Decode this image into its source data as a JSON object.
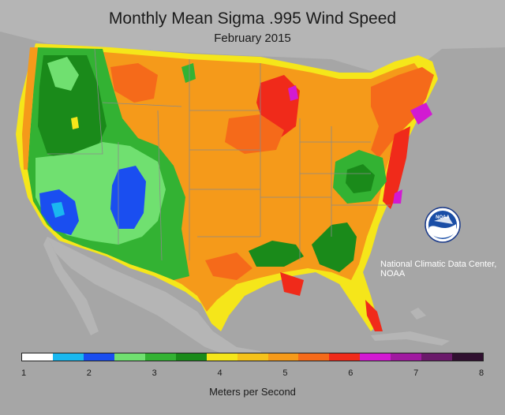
{
  "title": "Monthly Mean Sigma .995 Wind Speed",
  "subtitle": "February 2015",
  "credit": "National Climatic Data Center, NOAA",
  "logo_text": "NOAA",
  "legend": {
    "units": "Meters per Second",
    "ticks": [
      "1",
      "2",
      "3",
      "4",
      "5",
      "6",
      "7",
      "8"
    ],
    "colors": [
      "#ffffff",
      "#1ab8f0",
      "#1a4ef0",
      "#70e070",
      "#33b233",
      "#1a8a1a",
      "#f5e61a",
      "#f5c21a",
      "#f59a1a",
      "#f56a1a",
      "#f02a1a",
      "#d21ad2",
      "#a01aa0",
      "#6a1a6a",
      "#301030"
    ]
  },
  "colors": {
    "land_outside": "#b5b5b5",
    "water": "#a6a6a6",
    "border": "#8a8a8a"
  }
}
